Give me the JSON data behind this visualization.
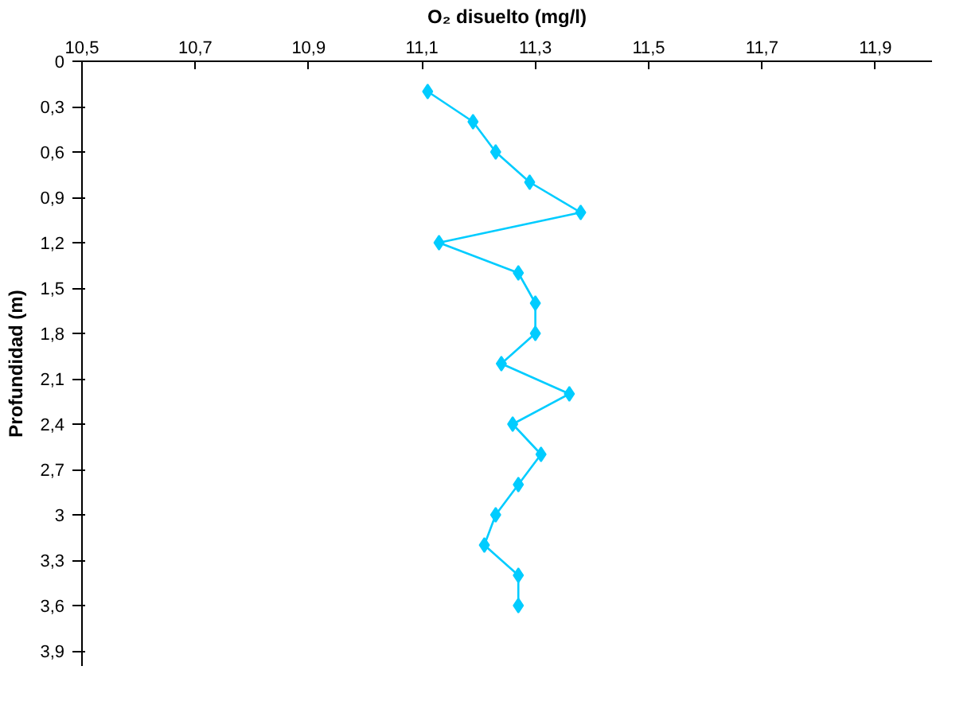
{
  "chart_data": {
    "type": "line",
    "xlabel": "O₂ disuelto (mg/l)",
    "ylabel": "Profundidad (m)",
    "series": [
      {
        "color": "#00ccff",
        "x": [
          11.11,
          11.19,
          11.23,
          11.29,
          11.38,
          11.13,
          11.27,
          11.3,
          11.3,
          11.24,
          11.36,
          11.26,
          11.31,
          11.27,
          11.23,
          11.21,
          11.27,
          11.27
        ],
        "values": [
          0.2,
          0.4,
          0.6,
          0.8,
          1.0,
          1.2,
          1.4,
          1.6,
          1.8,
          2.0,
          2.2,
          2.4,
          2.6,
          2.8,
          3.0,
          3.2,
          3.4,
          3.6
        ]
      }
    ],
    "marker": "diamond",
    "grid": false,
    "xlim": [
      10.5,
      12.0
    ],
    "xticks": [
      {
        "value": 10.5,
        "label": "10,5"
      },
      {
        "value": 10.7,
        "label": "10,7"
      },
      {
        "value": 10.9,
        "label": "10,9"
      },
      {
        "value": 11.1,
        "label": "11,1"
      },
      {
        "value": 11.3,
        "label": "11,3"
      },
      {
        "value": 11.5,
        "label": "11,5"
      },
      {
        "value": 11.7,
        "label": "11,7"
      },
      {
        "value": 11.9,
        "label": "11,9"
      }
    ],
    "ylim": [
      4.0,
      0
    ],
    "yticks": [
      0,
      {
        "value": 0.3,
        "label": "0,3"
      },
      {
        "value": 0.6,
        "label": "0,6"
      },
      {
        "value": 0.9,
        "label": "0,9"
      },
      {
        "value": 1.2,
        "label": "1,2"
      },
      {
        "value": 1.5,
        "label": "1,5"
      },
      {
        "value": 1.8,
        "label": "1,8"
      },
      {
        "value": 2.1,
        "label": "2,1"
      },
      {
        "value": 2.4,
        "label": "2,4"
      },
      {
        "value": 2.7,
        "label": "2,7"
      },
      3,
      {
        "value": 3.3,
        "label": "3,3"
      },
      {
        "value": 3.6,
        "label": "3,6"
      },
      {
        "value": 3.9,
        "label": "3,9"
      }
    ]
  }
}
